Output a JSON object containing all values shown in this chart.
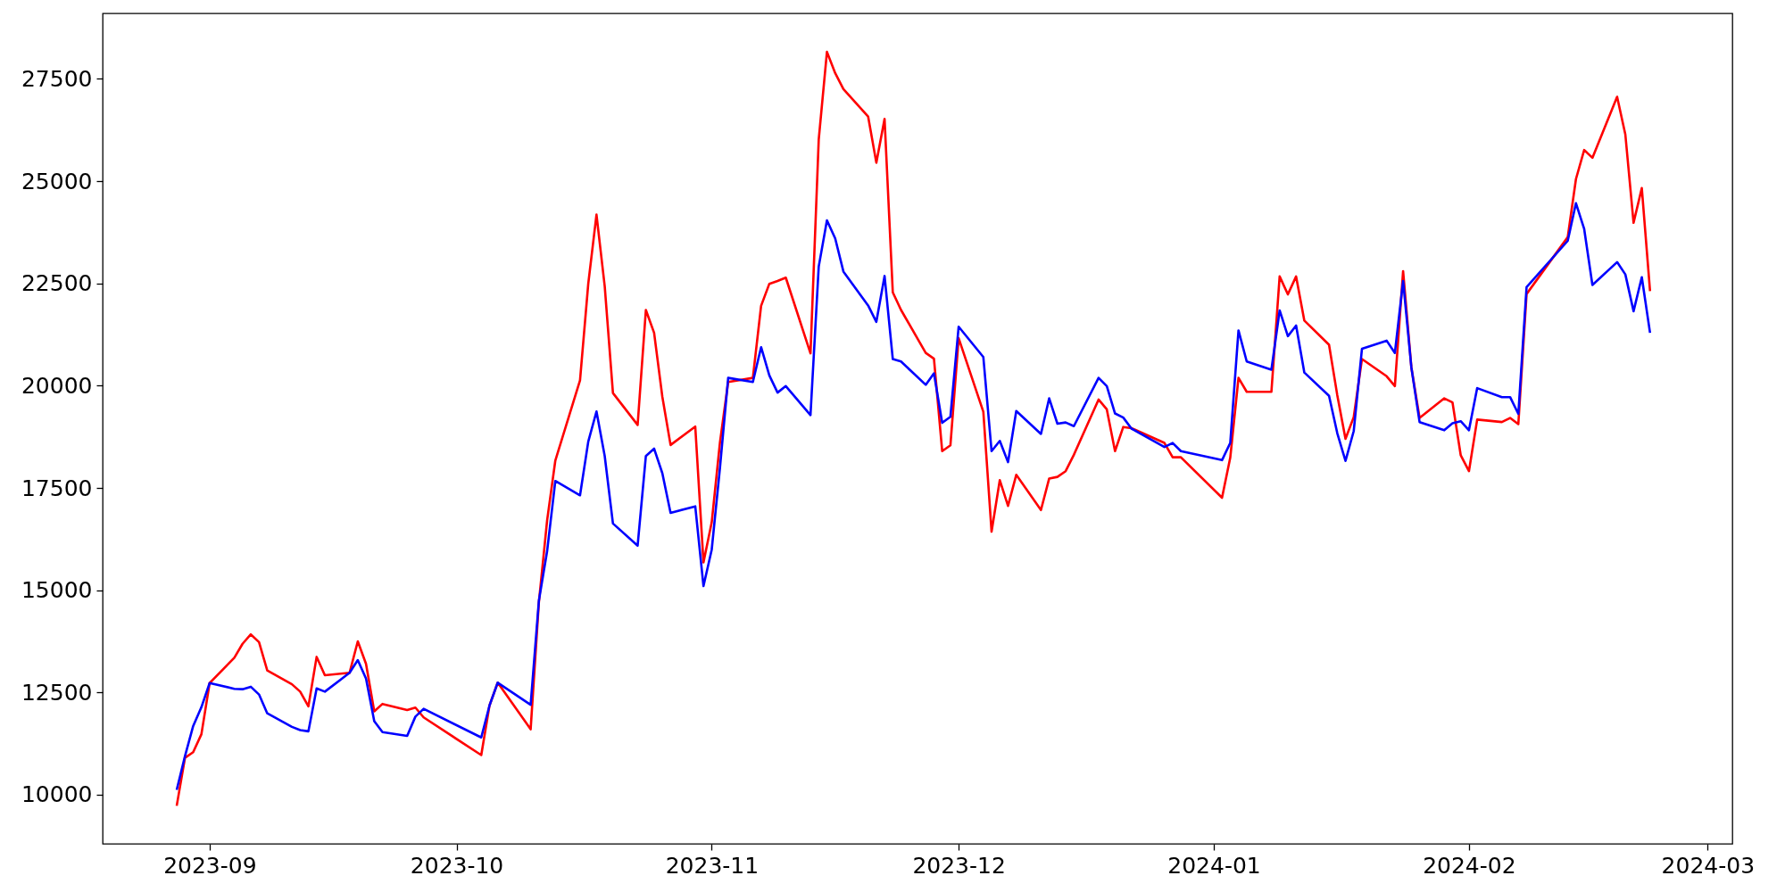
{
  "chart_data": {
    "type": "line",
    "x": [
      "2023-08-28",
      "2023-08-29",
      "2023-08-30",
      "2023-08-31",
      "2023-09-01",
      "2023-09-04",
      "2023-09-05",
      "2023-09-06",
      "2023-09-07",
      "2023-09-08",
      "2023-09-11",
      "2023-09-12",
      "2023-09-13",
      "2023-09-14",
      "2023-09-15",
      "2023-09-18",
      "2023-09-19",
      "2023-09-20",
      "2023-09-21",
      "2023-09-22",
      "2023-09-25",
      "2023-09-26",
      "2023-09-27",
      "2023-10-04",
      "2023-10-05",
      "2023-10-06",
      "2023-10-10",
      "2023-10-11",
      "2023-10-12",
      "2023-10-13",
      "2023-10-16",
      "2023-10-17",
      "2023-10-18",
      "2023-10-19",
      "2023-10-20",
      "2023-10-23",
      "2023-10-24",
      "2023-10-25",
      "2023-10-26",
      "2023-10-27",
      "2023-10-30",
      "2023-10-31",
      "2023-11-01",
      "2023-11-02",
      "2023-11-03",
      "2023-11-06",
      "2023-11-07",
      "2023-11-08",
      "2023-11-09",
      "2023-11-10",
      "2023-11-13",
      "2023-11-14",
      "2023-11-15",
      "2023-11-16",
      "2023-11-17",
      "2023-11-20",
      "2023-11-21",
      "2023-11-22",
      "2023-11-23",
      "2023-11-24",
      "2023-11-27",
      "2023-11-28",
      "2023-11-29",
      "2023-11-30",
      "2023-12-01",
      "2023-12-04",
      "2023-12-05",
      "2023-12-06",
      "2023-12-07",
      "2023-12-08",
      "2023-12-11",
      "2023-12-12",
      "2023-12-13",
      "2023-12-14",
      "2023-12-15",
      "2023-12-18",
      "2023-12-19",
      "2023-12-20",
      "2023-12-21",
      "2023-12-22",
      "2023-12-26",
      "2023-12-27",
      "2023-12-28",
      "2024-01-02",
      "2024-01-03",
      "2024-01-04",
      "2024-01-05",
      "2024-01-08",
      "2024-01-09",
      "2024-01-10",
      "2024-01-11",
      "2024-01-12",
      "2024-01-15",
      "2024-01-16",
      "2024-01-17",
      "2024-01-18",
      "2024-01-19",
      "2024-01-22",
      "2024-01-23",
      "2024-01-24",
      "2024-01-25",
      "2024-01-26",
      "2024-01-29",
      "2024-01-30",
      "2024-01-31",
      "2024-02-01",
      "2024-02-02",
      "2024-02-05",
      "2024-02-06",
      "2024-02-07",
      "2024-02-08",
      "2024-02-13",
      "2024-02-14",
      "2024-02-15",
      "2024-02-16",
      "2024-02-19",
      "2024-02-20",
      "2024-02-21",
      "2024-02-22",
      "2024-02-23"
    ],
    "series": [
      {
        "color": "#ff0000",
        "values": [
          9730,
          10900,
          11040,
          11480,
          12730,
          13350,
          13690,
          13920,
          13730,
          13040,
          12700,
          12520,
          12160,
          13370,
          12920,
          12980,
          13750,
          13200,
          12040,
          12220,
          12070,
          12130,
          11890,
          10970,
          12180,
          12740,
          11600,
          14700,
          16700,
          18170,
          20130,
          22490,
          24180,
          22430,
          19820,
          19040,
          21850,
          21290,
          19730,
          18550,
          19000,
          15680,
          16660,
          18610,
          20090,
          20190,
          21950,
          22490,
          22560,
          22640,
          20790,
          26010,
          28160,
          27640,
          27250,
          26580,
          25450,
          26520,
          22280,
          21850,
          20800,
          20660,
          18400,
          18540,
          21160,
          19360,
          16430,
          17690,
          17060,
          17820,
          16960,
          17730,
          17770,
          17910,
          18310,
          19660,
          19420,
          18400,
          18990,
          18960,
          18600,
          18250,
          18250,
          17260,
          18240,
          20190,
          19850,
          19850,
          22670,
          22230,
          22670,
          21590,
          21000,
          19770,
          18700,
          19230,
          20650,
          20230,
          19990,
          22800,
          20450,
          19210,
          19690,
          19590,
          18300,
          17910,
          19170,
          19110,
          19210,
          19060,
          22240,
          23630,
          25050,
          25760,
          25570,
          27060,
          26140,
          23980,
          24830,
          22310
        ]
      },
      {
        "color": "#0000ff",
        "values": [
          10120,
          10940,
          11680,
          12140,
          12730,
          12590,
          12580,
          12640,
          12450,
          11990,
          11660,
          11580,
          11550,
          12600,
          12520,
          12980,
          13290,
          12840,
          11800,
          11530,
          11440,
          11910,
          12100,
          11400,
          12180,
          12740,
          12200,
          14740,
          15950,
          17670,
          17320,
          18630,
          19370,
          18280,
          16630,
          16090,
          18280,
          18460,
          17860,
          16890,
          17050,
          15100,
          15990,
          17990,
          20190,
          20090,
          20940,
          20250,
          19830,
          19990,
          19280,
          22910,
          24040,
          23600,
          22790,
          21960,
          21560,
          22680,
          20650,
          20590,
          20020,
          20300,
          19090,
          19240,
          21440,
          20700,
          18400,
          18650,
          18130,
          19380,
          18820,
          19690,
          19070,
          19100,
          19010,
          20190,
          19990,
          19320,
          19220,
          18950,
          18500,
          18600,
          18400,
          18180,
          18600,
          21350,
          20590,
          20390,
          21840,
          21210,
          21470,
          20320,
          19750,
          18840,
          18160,
          18890,
          20900,
          21100,
          20800,
          22560,
          20450,
          19110,
          18910,
          19080,
          19130,
          18910,
          19940,
          19720,
          19720,
          19310,
          22410,
          23540,
          24460,
          23830,
          22460,
          23020,
          22720,
          21820,
          22650,
          21290
        ]
      }
    ],
    "xlim": [
      "2023-08-19",
      "2024-03-04"
    ],
    "ylim": [
      8800,
      29100
    ],
    "xticks": [
      "2023-09",
      "2023-10",
      "2023-11",
      "2023-12",
      "2024-01",
      "2024-02",
      "2024-03"
    ],
    "yticks": [
      10000,
      12500,
      15000,
      17500,
      20000,
      22500,
      25000,
      27500
    ]
  }
}
